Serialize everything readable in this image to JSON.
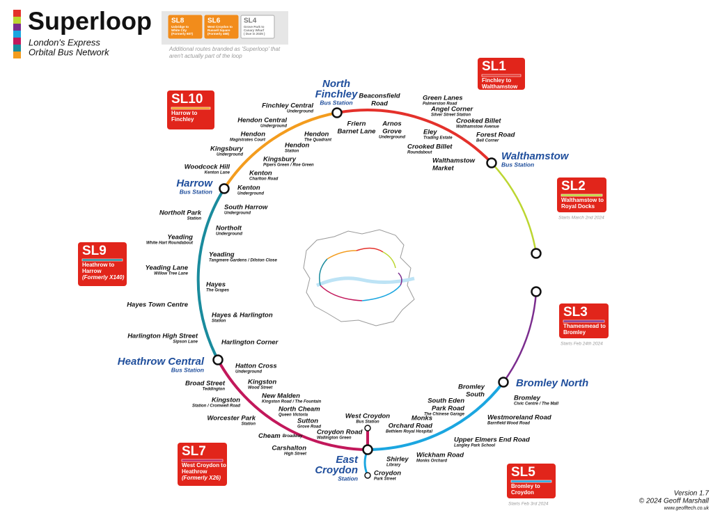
{
  "header": {
    "title": "Superloop",
    "subtitle": [
      "London's Express",
      "Orbital Bus Network"
    ]
  },
  "extra_routes": [
    {
      "code": "SL8",
      "desc": [
        "Uxbridge to",
        "White City",
        "(Formerly 607)"
      ]
    },
    {
      "code": "SL6",
      "desc": [
        "West Croydon to",
        "Russell Square",
        "(Formerly 468)"
      ]
    },
    {
      "code": "SL4",
      "desc": [
        "Grove Park to",
        "Canary Wharf",
        "( Due in 2025 )"
      ]
    }
  ],
  "extra_note": [
    "Additional routes branded as 'Superloop' that",
    "aren't actually part of the loop"
  ],
  "routes": [
    {
      "code": "SL1",
      "desc": [
        "Finchley to",
        "Walthamstow"
      ]
    },
    {
      "code": "SL10",
      "desc": [
        "Harrow to",
        "Finchley"
      ]
    },
    {
      "code": "SL2",
      "desc": [
        "Walthamstow to",
        "Royal Docks"
      ],
      "note": "Starts March 2nd 2024"
    },
    {
      "code": "SL9",
      "desc": [
        "Heathrow to",
        "Harrow",
        "(Formerly X140)"
      ]
    },
    {
      "code": "SL3",
      "desc": [
        "Thamesmead to",
        "Bromley"
      ],
      "note": "Starts Feb 24th 2024"
    },
    {
      "code": "SL7",
      "desc": [
        "West Croydon to",
        "Heathrow",
        "(Formerly X26)"
      ]
    },
    {
      "code": "SL5",
      "desc": [
        "Bromley to",
        "Croydon"
      ],
      "note": "Starts Feb 3rd 2024"
    }
  ],
  "hubs": [
    {
      "name": [
        "North",
        "Finchley"
      ],
      "sub": "Bus Station"
    },
    {
      "name": [
        "Walthamstow"
      ],
      "sub": "Bus Station"
    },
    {
      "name": [
        "Harrow"
      ],
      "sub": "Bus Station"
    },
    {
      "name": [
        "Heathrow Central"
      ],
      "sub": "Bus Station"
    },
    {
      "name": [
        "Bromley North"
      ]
    },
    {
      "name": [
        "East",
        "Croydon"
      ],
      "sub": "Station"
    }
  ],
  "stops": [
    {
      "name": [
        "Finchley Central"
      ],
      "sub": "Underground"
    },
    {
      "name": [
        "Hendon Central"
      ],
      "sub": "Underground"
    },
    {
      "name": [
        "Hendon"
      ],
      "sub": "Magistrates Court"
    },
    {
      "name": [
        "Hendon"
      ],
      "sub": "The Quadrant"
    },
    {
      "name": [
        "Hendon"
      ],
      "sub": "Station"
    },
    {
      "name": [
        "Kingsbury"
      ],
      "sub": "Underground"
    },
    {
      "name": [
        "Kingsbury"
      ],
      "sub": "Pipers Green / Roe Green"
    },
    {
      "name": [
        "Woodcock Hill"
      ],
      "sub": "Kenton Lane"
    },
    {
      "name": [
        "Kenton"
      ],
      "sub": "Charlton Road"
    },
    {
      "name": [
        "Kenton"
      ],
      "sub": "Underground"
    },
    {
      "name": [
        "Beaconsfield",
        "Road"
      ]
    },
    {
      "name": [
        "Friern",
        "Barnet Lane"
      ]
    },
    {
      "name": [
        "Green Lanes"
      ],
      "sub": "Palmerston Road"
    },
    {
      "name": [
        "Arnos",
        "Grove"
      ],
      "sub": "Underground"
    },
    {
      "name": [
        "Angel Corner"
      ],
      "sub": "Silver Street Station"
    },
    {
      "name": [
        "Crooked Billet"
      ],
      "sub": "Walthamstow Avenue"
    },
    {
      "name": [
        "Eley"
      ],
      "sub": "Trading Estate"
    },
    {
      "name": [
        "Forest Road"
      ],
      "sub": "Bell Corner"
    },
    {
      "name": [
        "Crooked Billet"
      ],
      "sub": "Roundabout"
    },
    {
      "name": [
        "Walthamstow",
        "Market"
      ]
    },
    {
      "name": [
        "South Harrow"
      ],
      "sub": "Underground"
    },
    {
      "name": [
        "Northolt Park"
      ],
      "sub": "Station"
    },
    {
      "name": [
        "Northolt"
      ],
      "sub": "Underground"
    },
    {
      "name": [
        "Yeading"
      ],
      "sub": "White Hart Roundabout"
    },
    {
      "name": [
        "Yeading"
      ],
      "sub": "Tangmere Gardens / Dilston Close"
    },
    {
      "name": [
        "Yeading Lane"
      ],
      "sub": "Willow Tree Lane"
    },
    {
      "name": [
        "Hayes"
      ],
      "sub": "The Grapes"
    },
    {
      "name": [
        "Hayes Town Centre"
      ]
    },
    {
      "name": [
        "Hayes & Harlington"
      ],
      "sub": "Station"
    },
    {
      "name": [
        "Harlington High Street"
      ],
      "sub": "Sipson Lane"
    },
    {
      "name": [
        "Harlington Corner"
      ]
    },
    {
      "name": [
        "Hatton Cross"
      ],
      "sub": "Underground"
    },
    {
      "name": [
        "Broad Street"
      ],
      "sub": "Teddington"
    },
    {
      "name": [
        "Kingston"
      ],
      "sub": "Wood Street"
    },
    {
      "name": [
        "New Malden"
      ],
      "sub": "Kingston Road / The Fountain"
    },
    {
      "name": [
        "Kingston"
      ],
      "sub": "Station / Cromwell Road"
    },
    {
      "name": [
        "North Cheam"
      ],
      "sub": "Queen Victoria"
    },
    {
      "name": [
        "Worcester Park"
      ],
      "sub": "Station"
    },
    {
      "name": [
        "Sutton"
      ],
      "sub": "Grove Road"
    },
    {
      "name": [
        "Cheam"
      ],
      "sub": "Broadway"
    },
    {
      "name": [
        "Croydon Road"
      ],
      "sub": "Wallington Green"
    },
    {
      "name": [
        "Carshalton"
      ],
      "sub": "High Street"
    },
    {
      "name": [
        "West Croydon"
      ],
      "sub": "Bus Station"
    },
    {
      "name": [
        "Croydon"
      ],
      "sub": "Park Street"
    },
    {
      "name": [
        "Shirley"
      ],
      "sub": "Library"
    },
    {
      "name": [
        "Wickham Road"
      ],
      "sub": "Monks Orchard"
    },
    {
      "name": [
        "Monks",
        "Orchard Road"
      ],
      "sub": "Bethlem Royal Hospital"
    },
    {
      "name": [
        "Upper Elmers End Road"
      ],
      "sub": "Langley Park School"
    },
    {
      "name": [
        "South Eden",
        "Park Road"
      ],
      "sub": "The Chinese Garage"
    },
    {
      "name": [
        "Westmoreland Road"
      ],
      "sub": "Barnfield Wood Road"
    },
    {
      "name": [
        "Bromley",
        "South"
      ]
    },
    {
      "name": [
        "Bromley"
      ],
      "sub": "Civic Centre / The Mall"
    }
  ],
  "footer": [
    "Version 1.7",
    "© 2024 Geoff Marshall",
    "www.geofftech.co.uk"
  ]
}
